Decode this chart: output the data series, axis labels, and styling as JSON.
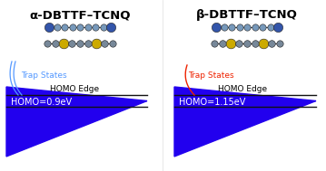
{
  "title_left": "α-DBTTF–TCNQ",
  "title_right": "β-DBTTF–TCNQ",
  "homo_label_left": "HOMO=0.9eV",
  "homo_label_right": "HOMO=1.15eV",
  "homo_edge_label": "HOMO Edge",
  "trap_states_label": "Trap States",
  "fill_color": "#2200EE",
  "trap_color_left": "#5599FF",
  "trap_color_right": "#EE2200",
  "background_color": "#FFFFFF",
  "tcnq_color": "#7799BB",
  "tcnq_blue_color": "#3355AA",
  "dbttf_color": "#778899",
  "dbttf_yellow_color": "#CCAA00",
  "line_color": "#111111"
}
